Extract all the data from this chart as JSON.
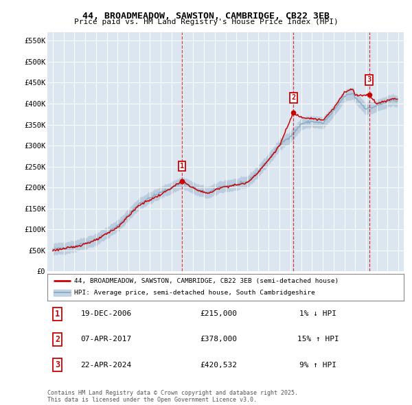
{
  "title": "44, BROADMEADOW, SAWSTON, CAMBRIDGE, CB22 3EB",
  "subtitle": "Price paid vs. HM Land Registry's House Price Index (HPI)",
  "background_color": "#ffffff",
  "plot_bg_color": "#dce6f1",
  "grid_color": "#ffffff",
  "hpi_color": "#a8bfd4",
  "hpi_line_color": "#8aafc8",
  "price_color": "#cc0000",
  "ylim": [
    0,
    570000
  ],
  "yticks": [
    0,
    50000,
    100000,
    150000,
    200000,
    250000,
    300000,
    350000,
    400000,
    450000,
    500000,
    550000
  ],
  "ytick_labels": [
    "£0",
    "£50K",
    "£100K",
    "£150K",
    "£200K",
    "£250K",
    "£300K",
    "£350K",
    "£400K",
    "£450K",
    "£500K",
    "£550K"
  ],
  "xlim_start": 1994.5,
  "xlim_end": 2027.5,
  "xticks": [
    1995,
    1996,
    1997,
    1998,
    1999,
    2000,
    2001,
    2002,
    2003,
    2004,
    2005,
    2006,
    2007,
    2008,
    2009,
    2010,
    2011,
    2012,
    2013,
    2014,
    2015,
    2016,
    2017,
    2018,
    2019,
    2020,
    2021,
    2022,
    2023,
    2024,
    2025,
    2026,
    2027
  ],
  "sale_years": [
    2006.9644,
    2017.2685,
    2024.3068
  ],
  "sale_prices": [
    215000,
    378000,
    420532
  ],
  "sale_labels": [
    "1",
    "2",
    "3"
  ],
  "legend_price_label": "44, BROADMEADOW, SAWSTON, CAMBRIDGE, CB22 3EB (semi-detached house)",
  "legend_hpi_label": "HPI: Average price, semi-detached house, South Cambridgeshire",
  "table_entries": [
    {
      "num": "1",
      "date": "19-DEC-2006",
      "price": "£215,000",
      "hpi": "1% ↓ HPI"
    },
    {
      "num": "2",
      "date": "07-APR-2017",
      "price": "£378,000",
      "hpi": "15% ↑ HPI"
    },
    {
      "num": "3",
      "date": "22-APR-2024",
      "price": "£420,532",
      "hpi": "9% ↑ HPI"
    }
  ],
  "footnote": "Contains HM Land Registry data © Crown copyright and database right 2025.\nThis data is licensed under the Open Government Licence v3.0."
}
